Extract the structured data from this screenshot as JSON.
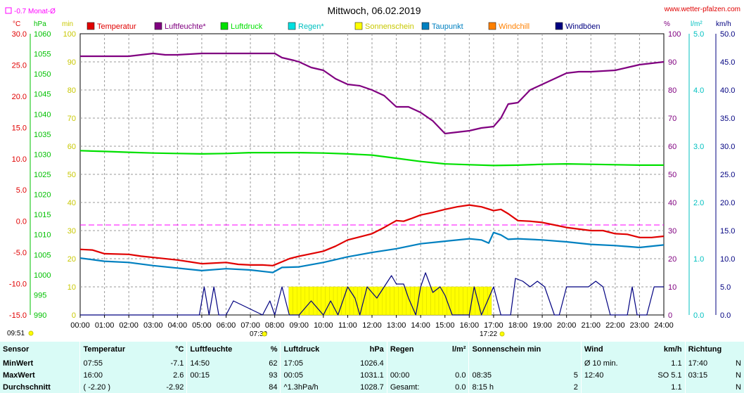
{
  "title": "Mittwoch, 06.02.2019",
  "source": "www.wetter-pfalzen.com",
  "month_avg": "-0.7 Monat-Ø",
  "units": {
    "temp": "°C",
    "press": "hPa",
    "min": "min",
    "pct": "%",
    "rain": "l/m²",
    "wind": "km/h"
  },
  "legend": [
    {
      "label": "Temperatur",
      "color": "#e00000"
    },
    {
      "label": "Luftfeuchte*",
      "color": "#800080"
    },
    {
      "label": "Luftdruck",
      "color": "#00e000"
    },
    {
      "label": "Regen*",
      "color": "#00e0e0"
    },
    {
      "label": "Sonnenschein",
      "color": "#ffff00"
    },
    {
      "label": "Taupunkt",
      "color": "#0080c0"
    },
    {
      "label": "Windchill",
      "color": "#ff8000"
    },
    {
      "label": "Windböen",
      "color": "#000080"
    }
  ],
  "markers": {
    "sunrise": "07:30",
    "sunset": "17:22",
    "left_time": "09:51"
  },
  "axes": {
    "x": [
      "00:00",
      "01:00",
      "02:00",
      "03:00",
      "04:00",
      "05:00",
      "06:00",
      "07:00",
      "08:00",
      "09:00",
      "10:00",
      "11:00",
      "12:00",
      "13:00",
      "14:00",
      "15:00",
      "16:00",
      "17:00",
      "18:00",
      "19:00",
      "20:00",
      "21:00",
      "22:00",
      "23:00",
      "24:00"
    ],
    "temp": [
      "30.0",
      "25.0",
      "20.0",
      "15.0",
      "10.0",
      "5.0",
      "0.0",
      "-5.0",
      "-10.0",
      "-15.0"
    ],
    "press": [
      "1060",
      "1055",
      "1050",
      "1045",
      "1040",
      "1035",
      "1030",
      "1025",
      "1020",
      "1015",
      "1010",
      "1005",
      "1000",
      "995",
      "990"
    ],
    "minutes": [
      "100",
      "90",
      "80",
      "70",
      "60",
      "50",
      "40",
      "30",
      "20",
      "10",
      "0"
    ],
    "pct": [
      "100",
      "90",
      "80",
      "70",
      "60",
      "50",
      "40",
      "30",
      "20",
      "10",
      "0"
    ],
    "rain": [
      "5.0",
      "4.0",
      "3.0",
      "2.0",
      "1.0",
      "0.0"
    ],
    "wind": [
      "50.0",
      "45.0",
      "40.0",
      "35.0",
      "30.0",
      "25.0",
      "20.0",
      "15.0",
      "10.0",
      "5.0",
      "0.0"
    ]
  },
  "chart_data": {
    "type": "line",
    "title": "Mittwoch, 06.02.2019",
    "x_unit": "hours",
    "xlim": [
      0,
      24
    ],
    "series": [
      {
        "name": "Temperatur",
        "unit": "°C",
        "color": "#e00000",
        "points": [
          [
            0,
            -4.5
          ],
          [
            0.5,
            -4.6
          ],
          [
            1,
            -5.2
          ],
          [
            2,
            -5.3
          ],
          [
            2.5,
            -5.6
          ],
          [
            3,
            -5.8
          ],
          [
            4,
            -6.2
          ],
          [
            4.5,
            -6.5
          ],
          [
            5,
            -6.8
          ],
          [
            6,
            -6.6
          ],
          [
            6.5,
            -6.9
          ],
          [
            7,
            -7.0
          ],
          [
            7.5,
            -7.0
          ],
          [
            7.92,
            -7.1
          ],
          [
            8.3,
            -6.5
          ],
          [
            8.6,
            -6.0
          ],
          [
            9,
            -5.6
          ],
          [
            9.5,
            -5.2
          ],
          [
            10,
            -4.8
          ],
          [
            10.5,
            -4.0
          ],
          [
            11,
            -3.0
          ],
          [
            11.5,
            -2.5
          ],
          [
            12,
            -2.0
          ],
          [
            12.5,
            -1.0
          ],
          [
            13,
            0.1
          ],
          [
            13.3,
            0.0
          ],
          [
            13.6,
            0.4
          ],
          [
            14,
            1.0
          ],
          [
            14.5,
            1.4
          ],
          [
            15,
            1.9
          ],
          [
            15.5,
            2.3
          ],
          [
            16,
            2.6
          ],
          [
            16.5,
            2.3
          ],
          [
            17,
            1.7
          ],
          [
            17.3,
            1.9
          ],
          [
            17.6,
            1.2
          ],
          [
            18,
            0.1
          ],
          [
            18.5,
            0.0
          ],
          [
            19,
            -0.2
          ],
          [
            19.5,
            -0.6
          ],
          [
            20,
            -1.0
          ],
          [
            21,
            -1.5
          ],
          [
            21.5,
            -1.5
          ],
          [
            22,
            -2.0
          ],
          [
            22.5,
            -2.1
          ],
          [
            23,
            -2.6
          ],
          [
            23.5,
            -2.6
          ],
          [
            24,
            -2.4
          ]
        ]
      },
      {
        "name": "Luftfeuchte*",
        "unit": "%",
        "color": "#800080",
        "points": [
          [
            0,
            92
          ],
          [
            1,
            92
          ],
          [
            2,
            92
          ],
          [
            3,
            93
          ],
          [
            3.5,
            92.5
          ],
          [
            4,
            92.5
          ],
          [
            5,
            93
          ],
          [
            6,
            93
          ],
          [
            7,
            93
          ],
          [
            8,
            93
          ],
          [
            8.3,
            91.5
          ],
          [
            8.8,
            90.5
          ],
          [
            9,
            90
          ],
          [
            9.5,
            88
          ],
          [
            10,
            87
          ],
          [
            10.5,
            84
          ],
          [
            11,
            82
          ],
          [
            11.5,
            81.5
          ],
          [
            12,
            80
          ],
          [
            12.5,
            78
          ],
          [
            13,
            74
          ],
          [
            13.5,
            74
          ],
          [
            14,
            72
          ],
          [
            14.5,
            69
          ],
          [
            15,
            64.5
          ],
          [
            15.5,
            65
          ],
          [
            16,
            65.5
          ],
          [
            16.5,
            66.5
          ],
          [
            17,
            67
          ],
          [
            17.3,
            70
          ],
          [
            17.6,
            75
          ],
          [
            18,
            75.5
          ],
          [
            18.5,
            80
          ],
          [
            19,
            82
          ],
          [
            19.5,
            84
          ],
          [
            20,
            86
          ],
          [
            20.5,
            86.5
          ],
          [
            21,
            86.5
          ],
          [
            22,
            87
          ],
          [
            22.5,
            88
          ],
          [
            23,
            89
          ],
          [
            23.5,
            89.5
          ],
          [
            24,
            90
          ]
        ]
      },
      {
        "name": "Luftdruck",
        "unit": "hPa",
        "color": "#00e000",
        "points": [
          [
            0,
            1030.9
          ],
          [
            1,
            1030.7
          ],
          [
            2,
            1030.5
          ],
          [
            3,
            1030.3
          ],
          [
            4,
            1030.2
          ],
          [
            5,
            1030.1
          ],
          [
            6,
            1030.2
          ],
          [
            7,
            1030.4
          ],
          [
            8,
            1030.4
          ],
          [
            9,
            1030.4
          ],
          [
            10,
            1030.3
          ],
          [
            11,
            1030.1
          ],
          [
            12,
            1029.8
          ],
          [
            13,
            1029.0
          ],
          [
            14,
            1028.2
          ],
          [
            15,
            1027.6
          ],
          [
            16,
            1027.4
          ],
          [
            17,
            1027.2
          ],
          [
            18,
            1027.3
          ],
          [
            19,
            1027.5
          ],
          [
            20,
            1027.6
          ],
          [
            21,
            1027.5
          ],
          [
            22,
            1027.4
          ],
          [
            23,
            1027.3
          ],
          [
            24,
            1027.3
          ]
        ]
      },
      {
        "name": "Taupunkt",
        "unit": "°C",
        "color": "#0080c0",
        "points": [
          [
            0,
            -5.9
          ],
          [
            1,
            -6.4
          ],
          [
            2,
            -6.6
          ],
          [
            3,
            -7.1
          ],
          [
            4,
            -7.5
          ],
          [
            5,
            -7.9
          ],
          [
            6,
            -7.6
          ],
          [
            7,
            -7.8
          ],
          [
            7.92,
            -8.2
          ],
          [
            8.3,
            -7.4
          ],
          [
            9,
            -7.3
          ],
          [
            10,
            -6.6
          ],
          [
            11,
            -5.7
          ],
          [
            12,
            -5.0
          ],
          [
            13,
            -4.4
          ],
          [
            14,
            -3.6
          ],
          [
            15,
            -3.2
          ],
          [
            16,
            -2.8
          ],
          [
            16.5,
            -3.0
          ],
          [
            16.8,
            -3.5
          ],
          [
            17,
            -1.8
          ],
          [
            17.3,
            -2.2
          ],
          [
            17.6,
            -2.9
          ],
          [
            18,
            -2.8
          ],
          [
            19,
            -3.0
          ],
          [
            20,
            -3.3
          ],
          [
            21,
            -3.7
          ],
          [
            22,
            -3.9
          ],
          [
            23,
            -4.2
          ],
          [
            24,
            -3.8
          ]
        ]
      },
      {
        "name": "Windböen",
        "unit": "km/h",
        "color": "#000080",
        "points": [
          [
            0,
            0
          ],
          [
            4.9,
            0
          ],
          [
            5.1,
            5
          ],
          [
            5.3,
            0
          ],
          [
            5.5,
            5
          ],
          [
            5.7,
            0
          ],
          [
            6,
            0
          ],
          [
            6.3,
            2.5
          ],
          [
            7.5,
            0
          ],
          [
            7.8,
            2.5
          ],
          [
            8,
            0
          ],
          [
            8.3,
            5
          ],
          [
            8.6,
            0
          ],
          [
            9,
            0
          ],
          [
            9.5,
            2.5
          ],
          [
            10,
            0
          ],
          [
            10.3,
            2.5
          ],
          [
            10.6,
            0
          ],
          [
            11,
            5
          ],
          [
            11.3,
            3
          ],
          [
            11.5,
            0
          ],
          [
            11.8,
            5
          ],
          [
            12.2,
            3
          ],
          [
            12.5,
            5
          ],
          [
            12.8,
            7
          ],
          [
            13,
            5.5
          ],
          [
            13.3,
            5.5
          ],
          [
            13.5,
            3
          ],
          [
            13.8,
            0
          ],
          [
            14,
            5
          ],
          [
            14.2,
            7.5
          ],
          [
            14.5,
            4
          ],
          [
            14.8,
            5
          ],
          [
            15,
            3.5
          ],
          [
            15.3,
            0
          ],
          [
            16,
            0
          ],
          [
            16.2,
            5
          ],
          [
            16.5,
            0
          ],
          [
            17,
            5
          ],
          [
            17.3,
            0
          ],
          [
            17.7,
            0
          ],
          [
            17.9,
            6.5
          ],
          [
            18.2,
            6
          ],
          [
            18.5,
            5
          ],
          [
            18.8,
            6
          ],
          [
            19.1,
            5
          ],
          [
            19.5,
            0
          ],
          [
            19.7,
            0
          ],
          [
            20,
            5
          ],
          [
            20.5,
            5
          ],
          [
            20.9,
            5
          ],
          [
            21.2,
            6
          ],
          [
            21.5,
            5
          ],
          [
            21.8,
            0
          ],
          [
            22.5,
            0
          ],
          [
            22.7,
            5
          ],
          [
            22.9,
            0
          ],
          [
            23.3,
            0
          ],
          [
            23.6,
            5
          ],
          [
            24,
            5
          ]
        ]
      }
    ],
    "sunshine_bars": {
      "unit": "min per 10 min",
      "from": 8.58,
      "to": 16.83,
      "level": 10
    }
  },
  "stats": {
    "header": [
      "Sensor",
      "Temperatur",
      "°C",
      "Luftfeuchte",
      "%",
      "Luftdruck",
      "hPa",
      "Regen",
      "l/m²",
      "Sonnenschein min",
      "Wind",
      "km/h",
      "Richtung"
    ],
    "rows": [
      {
        "label": "MinWert",
        "t_time": "07:55",
        "t_val": "-7.1",
        "h_time": "14:50",
        "h_val": "62",
        "p_time": "17:05",
        "p_val": "1026.4",
        "r_time": "",
        "r_val": "",
        "s_time": "",
        "s_val": "",
        "w_time": "Ø 10 min.",
        "w_val": "1.1",
        "d_time": "17:40",
        "d_val": "N"
      },
      {
        "label": "MaxWert",
        "t_time": "16:00",
        "t_val": "2.6",
        "h_time": "00:15",
        "h_val": "93",
        "p_time": "00:05",
        "p_val": "1031.1",
        "r_time": "00:00",
        "r_val": "0.0",
        "s_time": "08:35",
        "s_val": "5",
        "w_time": "12:40",
        "w_val": "SO 5.1",
        "d_time": "03:15",
        "d_val": "N"
      },
      {
        "label": "Durchschnitt",
        "t_time": "( -2.20 )",
        "t_val": "-2.92",
        "h_time": "",
        "h_val": "84",
        "p_time": "^1.3hPa/h",
        "p_val": "1028.7",
        "r_time": "Gesamt:",
        "r_val": "0.0",
        "s_time": "8:15 h",
        "s_val": "2",
        "w_time": "",
        "w_val": "1.1",
        "d_time": "",
        "d_val": "N"
      }
    ]
  }
}
